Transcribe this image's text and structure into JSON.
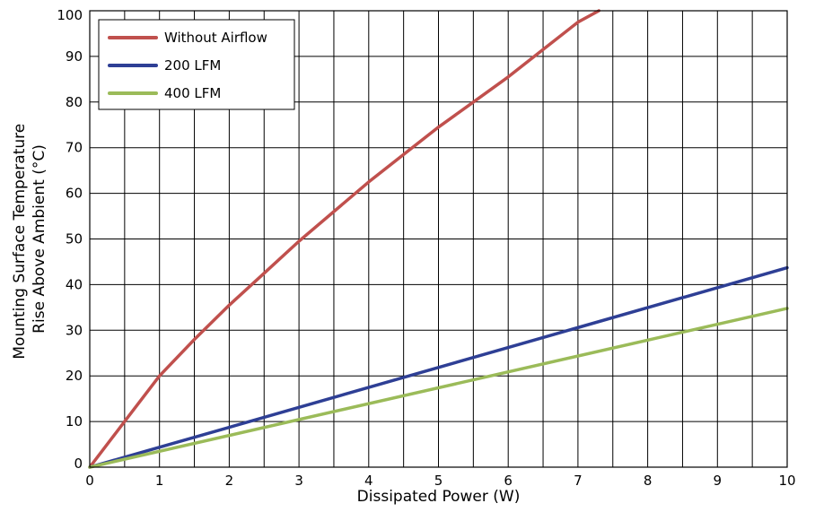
{
  "chart_data": {
    "type": "line",
    "xlabel": "Dissipated Power (W)",
    "ylabel_lines": [
      "Mounting Surface Temperature",
      "Rise Above  Ambient (°C)"
    ],
    "xlim": [
      0,
      10
    ],
    "ylim": [
      0,
      100
    ],
    "x_ticks": [
      "0",
      "1",
      "2",
      "3",
      "4",
      "5",
      "6",
      "7",
      "8",
      "9",
      "10"
    ],
    "y_ticks": [
      "0",
      "10",
      "20",
      "30",
      "40",
      "50",
      "60",
      "70",
      "80",
      "90",
      "100"
    ],
    "grid": true,
    "x_grid_step": 0.5,
    "y_grid_step": 10,
    "legend_position": "top-left",
    "series": [
      {
        "name": "Without Airflow",
        "color": "#c0504d",
        "points": [
          [
            0,
            0
          ],
          [
            0.5,
            10
          ],
          [
            1,
            20
          ],
          [
            1.5,
            28
          ],
          [
            2,
            35.5
          ],
          [
            2.5,
            42.5
          ],
          [
            3,
            49.5
          ],
          [
            3.5,
            56
          ],
          [
            4,
            62.5
          ],
          [
            4.5,
            68.5
          ],
          [
            5,
            74.5
          ],
          [
            5.5,
            80
          ],
          [
            6,
            85.5
          ],
          [
            6.5,
            91.5
          ],
          [
            7,
            97.5
          ],
          [
            7.3,
            100
          ]
        ]
      },
      {
        "name": "200 LFM",
        "color": "#2e3f95",
        "points": [
          [
            0,
            0
          ],
          [
            10,
            43.7
          ]
        ]
      },
      {
        "name": "400 LFM",
        "color": "#9bbb59",
        "points": [
          [
            0,
            0
          ],
          [
            10,
            34.8
          ]
        ]
      }
    ]
  }
}
